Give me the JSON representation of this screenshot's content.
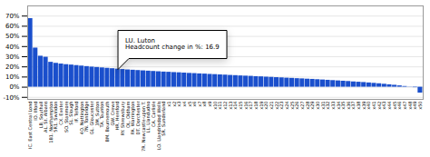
{
  "chart_data": {
    "type": "bar",
    "categories": [
      "IC. East Central Lond",
      "IO. Ilford",
      "LB. Southall",
      "AL. St. Albans",
      "1B1. Northampton",
      "5R1. Swindon",
      "CX. Exeter",
      "SO. Stanmore",
      "SL. Slough",
      "IF. Telford",
      "4O. Nottington",
      "7N. Tonbridge",
      "GL. Gloucester",
      "3M. Sutton",
      "TA. Taunton",
      "BM. Bournemouth",
      "GW. Crewe",
      "HR. Hereford",
      "RY. Shrewsbury",
      "OL. Oldham",
      "PA. Warrington",
      "DT. Dorchester",
      "7R. Newcastle-upon T.",
      "LL. Llandudno",
      "CA. Carlisle",
      "LO. Llandrindod Wells",
      "SR. Sunderland",
      "x1",
      "x2",
      "x3",
      "x4",
      "x5",
      "x6",
      "x7",
      "x8",
      "x9",
      "x10",
      "x11",
      "x12",
      "x13",
      "x14",
      "x15",
      "x16",
      "x17",
      "x18",
      "x19",
      "x20",
      "x21",
      "x22",
      "x23",
      "x24",
      "x25",
      "x26",
      "x27",
      "x28",
      "x29",
      "x30",
      "x31",
      "x32",
      "x33",
      "x34",
      "x35",
      "x36",
      "x37",
      "x38",
      "x39",
      "x40",
      "x41",
      "x42",
      "x43",
      "x44",
      "x45",
      "x46",
      "x47",
      "x48",
      "x49",
      "x50"
    ],
    "values": [
      0.675,
      0.385,
      0.305,
      0.295,
      0.245,
      0.235,
      0.228,
      0.222,
      0.218,
      0.213,
      0.208,
      0.203,
      0.198,
      0.194,
      0.19,
      0.186,
      0.182,
      0.178,
      0.174,
      0.17,
      0.167,
      0.164,
      0.161,
      0.158,
      0.155,
      0.152,
      0.149,
      0.147,
      0.144,
      0.142,
      0.139,
      0.136,
      0.134,
      0.131,
      0.129,
      0.126,
      0.124,
      0.121,
      0.119,
      0.116,
      0.114,
      0.111,
      0.109,
      0.107,
      0.104,
      0.102,
      0.099,
      0.097,
      0.094,
      0.092,
      0.089,
      0.087,
      0.084,
      0.082,
      0.079,
      0.077,
      0.074,
      0.071,
      0.068,
      0.065,
      0.062,
      0.059,
      0.056,
      0.052,
      0.049,
      0.046,
      0.042,
      0.038,
      0.034,
      0.029,
      0.024,
      0.019,
      0.013,
      0.007,
      0.002,
      -0.005,
      -0.058
    ],
    "color": "#1a4fcc",
    "ylim": [
      -0.12,
      0.8
    ],
    "yticks": [
      {
        "value": -0.1,
        "label": "-10%"
      },
      {
        "value": 0.0,
        "label": "0%"
      },
      {
        "value": 0.1,
        "label": "10%"
      },
      {
        "value": 0.2,
        "label": "20%"
      },
      {
        "value": 0.3,
        "label": "30%"
      },
      {
        "value": 0.4,
        "label": "40%"
      },
      {
        "value": 0.5,
        "label": "50%"
      },
      {
        "value": 0.6,
        "label": "60%"
      },
      {
        "value": 0.7,
        "label": "70%"
      }
    ],
    "grid": true,
    "annotations": [
      {
        "text": "LU. Luton\nHeadcount change in %: 16.9",
        "category": "HR. Hereford"
      }
    ]
  }
}
